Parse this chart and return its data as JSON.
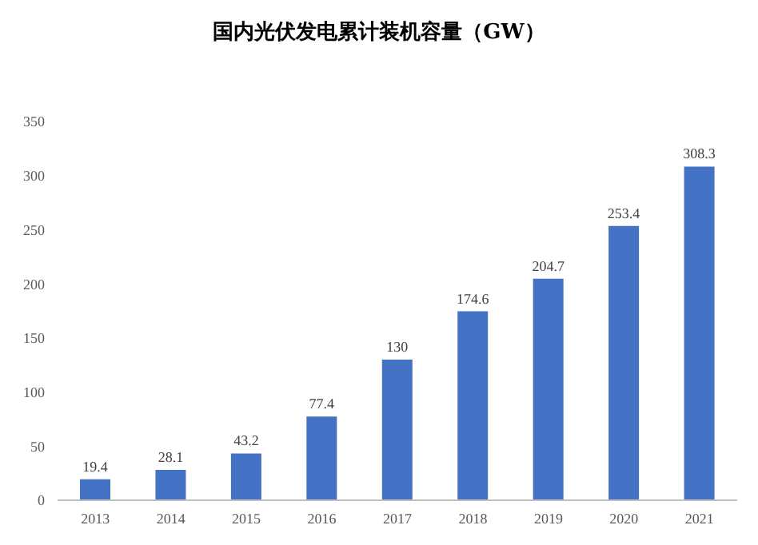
{
  "chart_data": {
    "type": "bar",
    "title": "国内光伏发电累计装机容量（GW）",
    "categories": [
      "2013",
      "2014",
      "2015",
      "2016",
      "2017",
      "2018",
      "2019",
      "2020",
      "2021"
    ],
    "values": [
      19.4,
      28.1,
      43.2,
      77.4,
      130,
      174.6,
      204.7,
      253.4,
      308.3
    ],
    "color": "#4472c4",
    "ylim": [
      0,
      350
    ],
    "yticks": [
      0,
      50,
      100,
      150,
      200,
      250,
      300,
      350
    ],
    "grid": false,
    "data_labels": true,
    "legend": false
  }
}
